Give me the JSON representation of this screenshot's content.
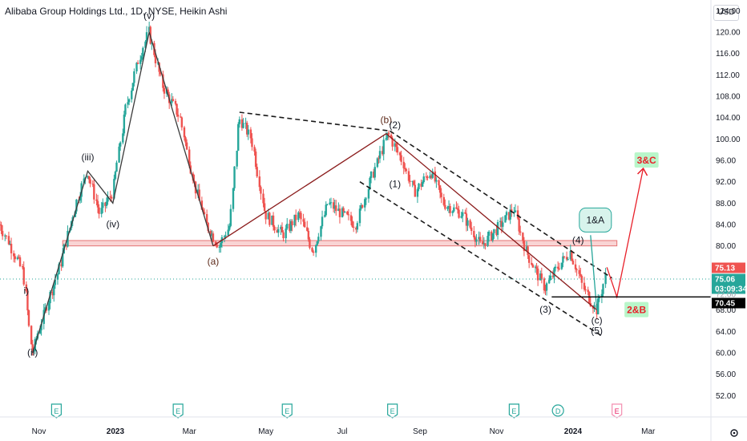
{
  "header": {
    "title": "Alibaba Group Holdings Ltd., 1D, NYSE, Heikin Ashi",
    "currency": "USD"
  },
  "colors": {
    "up": "#26a69a",
    "down": "#ef5350",
    "trend": "#8b1c1c",
    "zone": "#f5b7b7",
    "projection": "#e8202a",
    "callout_bg": "#d8f3ec",
    "callout_border": "#26a69a",
    "label_bg": "#b9f6ca",
    "label_text": "#e8202a"
  },
  "chart_data": {
    "type": "candlestick",
    "style": "Heikin Ashi",
    "title": "Alibaba Group Holdings Ltd., 1D, NYSE, Heikin Ashi",
    "x_tick_labels": [
      "Nov",
      "2023",
      "Mar",
      "May",
      "Jul",
      "Sep",
      "Nov",
      "2024",
      "Mar"
    ],
    "x_range": [
      "2022-10-01",
      "2024-04-20"
    ],
    "y_tick_labels": [
      "52.00",
      "56.00",
      "60.00",
      "64.00",
      "68.00",
      "72.00",
      "76.00",
      "80.00",
      "84.00",
      "88.00",
      "92.00",
      "96.00",
      "100.00",
      "104.00",
      "108.00",
      "112.00",
      "116.00",
      "120.00",
      "124.00"
    ],
    "ylim": [
      48,
      126
    ],
    "price_path": [
      {
        "date": "2022-10-01",
        "price": 84
      },
      {
        "date": "2022-10-10",
        "price": 80
      },
      {
        "date": "2022-10-20",
        "price": 75
      },
      {
        "date": "2022-10-27",
        "price": 60
      },
      {
        "date": "2022-11-05",
        "price": 67
      },
      {
        "date": "2022-11-18",
        "price": 76
      },
      {
        "date": "2022-12-01",
        "price": 88
      },
      {
        "date": "2022-12-10",
        "price": 94
      },
      {
        "date": "2022-12-20",
        "price": 86
      },
      {
        "date": "2022-12-30",
        "price": 90
      },
      {
        "date": "2023-01-10",
        "price": 106
      },
      {
        "date": "2023-01-20",
        "price": 115
      },
      {
        "date": "2023-01-28",
        "price": 120
      },
      {
        "date": "2023-02-08",
        "price": 110
      },
      {
        "date": "2023-02-22",
        "price": 104
      },
      {
        "date": "2023-03-05",
        "price": 92
      },
      {
        "date": "2023-03-15",
        "price": 84
      },
      {
        "date": "2023-03-25",
        "price": 80
      },
      {
        "date": "2023-04-03",
        "price": 84
      },
      {
        "date": "2023-04-10",
        "price": 104
      },
      {
        "date": "2023-04-20",
        "price": 100
      },
      {
        "date": "2023-05-01",
        "price": 86
      },
      {
        "date": "2023-05-15",
        "price": 82
      },
      {
        "date": "2023-05-28",
        "price": 86
      },
      {
        "date": "2023-06-08",
        "price": 79
      },
      {
        "date": "2023-06-20",
        "price": 88
      },
      {
        "date": "2023-07-01",
        "price": 86
      },
      {
        "date": "2023-07-12",
        "price": 84
      },
      {
        "date": "2023-07-25",
        "price": 93
      },
      {
        "date": "2023-08-07",
        "price": 101
      },
      {
        "date": "2023-08-18",
        "price": 96
      },
      {
        "date": "2023-08-28",
        "price": 90
      },
      {
        "date": "2023-09-10",
        "price": 94
      },
      {
        "date": "2023-09-20",
        "price": 88
      },
      {
        "date": "2023-10-05",
        "price": 86
      },
      {
        "date": "2023-10-20",
        "price": 80
      },
      {
        "date": "2023-11-05",
        "price": 84
      },
      {
        "date": "2023-11-15",
        "price": 87
      },
      {
        "date": "2023-11-25",
        "price": 79
      },
      {
        "date": "2023-12-10",
        "price": 72
      },
      {
        "date": "2023-12-20",
        "price": 76
      },
      {
        "date": "2023-12-30",
        "price": 79
      },
      {
        "date": "2024-01-10",
        "price": 72
      },
      {
        "date": "2024-01-20",
        "price": 68
      },
      {
        "date": "2024-01-28",
        "price": 75
      }
    ],
    "lines": [
      {
        "name": "wave-line",
        "style": "solid",
        "color": "#3a3a3a",
        "points": [
          [
            "2022-10-27",
            60
          ],
          [
            "2022-12-10",
            94
          ],
          [
            "2022-12-30",
            88
          ],
          [
            "2023-01-28",
            120
          ],
          [
            "2023-03-20",
            80
          ]
        ]
      },
      {
        "name": "abc-line",
        "style": "solid",
        "color": "#8b1c1c",
        "points": [
          [
            "2023-03-20",
            80
          ],
          [
            "2023-08-05",
            101
          ],
          [
            "2024-01-20",
            68
          ]
        ]
      },
      {
        "name": "channel-upper",
        "style": "dashed",
        "color": "#1a1a1a",
        "points": [
          [
            "2023-04-10",
            105
          ],
          [
            "2023-08-08",
            101.5
          ]
        ]
      },
      {
        "name": "channel-upper-2",
        "style": "dashed",
        "color": "#1a1a1a",
        "points": [
          [
            "2023-08-08",
            101.5
          ],
          [
            "2024-02-01",
            74
          ]
        ]
      },
      {
        "name": "channel-lower",
        "style": "dashed",
        "color": "#1a1a1a",
        "points": [
          [
            "2023-07-15",
            92
          ],
          [
            "2024-01-25",
            63
          ]
        ]
      },
      {
        "name": "green-projection",
        "style": "solid",
        "color": "#26a69a",
        "points": [
          [
            "2024-01-20",
            68
          ],
          [
            "2024-01-15",
            82
          ]
        ]
      },
      {
        "name": "red-projection",
        "style": "solid",
        "color": "#e8202a",
        "points": [
          [
            "2024-01-28",
            76
          ],
          [
            "2024-02-05",
            70.45
          ],
          [
            "2024-02-26",
            94.5
          ]
        ]
      },
      {
        "name": "support-line",
        "style": "solid",
        "color": "#000000",
        "points": [
          [
            "2023-12-15",
            70.45
          ],
          [
            "2024-04-20",
            70.45
          ]
        ]
      }
    ],
    "zone": {
      "from": 80,
      "to": 81,
      "start": "2022-11-20",
      "end": "2024-02-05"
    },
    "wave_labels": [
      {
        "text": "(v)",
        "date": "2023-01-28",
        "price": 122.5
      },
      {
        "text": "(iii)",
        "date": "2022-12-10",
        "price": 96
      },
      {
        "text": "(iv)",
        "date": "2022-12-30",
        "price": 83.5
      },
      {
        "text": "i)",
        "date": "2022-10-22",
        "price": 71
      },
      {
        "text": "(ii)",
        "date": "2022-10-27",
        "price": 59.5
      },
      {
        "text": "(a)",
        "date": "2023-03-20",
        "price": 76.5
      },
      {
        "text": "(b)",
        "date": "2023-08-05",
        "price": 103
      },
      {
        "text": "(2)",
        "date": "2023-08-12",
        "price": 102
      },
      {
        "text": "(1)",
        "date": "2023-08-12",
        "price": 91
      },
      {
        "text": "(3)",
        "date": "2023-12-10",
        "price": 67.5
      },
      {
        "text": "(4)",
        "date": "2024-01-05",
        "price": 80.5
      },
      {
        "text": "(c)",
        "date": "2024-01-20",
        "price": 65.5
      },
      {
        "text": "(5)",
        "date": "2024-01-20",
        "price": 63.5
      }
    ],
    "callout": {
      "text": "1&A",
      "date": "2024-01-15",
      "price": 85
    },
    "target_labels": [
      {
        "text": "3&C",
        "date": "2024-02-28",
        "price": 96
      },
      {
        "text": "2&B",
        "date": "2024-02-20",
        "price": 68
      }
    ],
    "price_labels": [
      {
        "text": "75.13",
        "price": 75.13,
        "color": "#ef5350"
      },
      {
        "text": "75.06",
        "price": 75.06,
        "color": "#26a69a"
      },
      {
        "text": "03:09:34",
        "price": 74.0,
        "color": "#26a69a"
      },
      {
        "text": "70.45",
        "price": 70.45,
        "color": "#000000"
      },
      {
        "text": "72.00",
        "price": 72.0,
        "color": "#a3a6af"
      }
    ],
    "event_markers": [
      {
        "text": "E",
        "date": "2022-11-15"
      },
      {
        "text": "E",
        "date": "2023-02-20"
      },
      {
        "text": "E",
        "date": "2023-05-18"
      },
      {
        "text": "E",
        "date": "2023-08-10"
      },
      {
        "text": "E",
        "date": "2023-11-15"
      },
      {
        "text": "D",
        "date": "2023-12-20"
      },
      {
        "text": "E",
        "date": "2024-02-05"
      }
    ],
    "grid": false,
    "legend": "none"
  }
}
